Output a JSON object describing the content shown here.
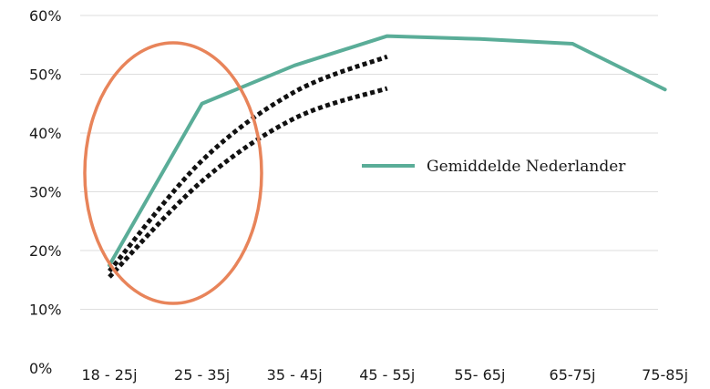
{
  "chart_data": {
    "type": "line",
    "categories": [
      "18 - 25j",
      "25 - 35j",
      "35 - 45j",
      "45 - 55j",
      "55- 65j",
      "65-75j",
      "75-85j"
    ],
    "ylim": [
      0,
      60
    ],
    "y_ticks": [
      0,
      10,
      20,
      30,
      40,
      50,
      60
    ],
    "y_tick_labels": [
      "0%",
      "10%",
      "20%",
      "30%",
      "40%",
      "50%",
      "60%"
    ],
    "grid": true,
    "legend_position": "center-right",
    "series": [
      {
        "name": "Gemiddelde Nederlander",
        "color": "#5aad98",
        "style": "solid",
        "values": [
          17.5,
          45,
          51.5,
          56.5,
          56,
          55.2,
          47.4
        ]
      },
      {
        "color": "#111111",
        "style": "dotted",
        "values": [
          16.5,
          35.3,
          47,
          53,
          null,
          null,
          null
        ]
      },
      {
        "color": "#111111",
        "style": "dotted",
        "values": [
          15.5,
          31.8,
          42.5,
          47.6,
          null,
          null,
          null
        ]
      }
    ],
    "annotations": [
      {
        "shape": "ellipse",
        "color": "#e8845a",
        "around": [
          "18 - 25j",
          "25 - 35j"
        ]
      }
    ]
  }
}
